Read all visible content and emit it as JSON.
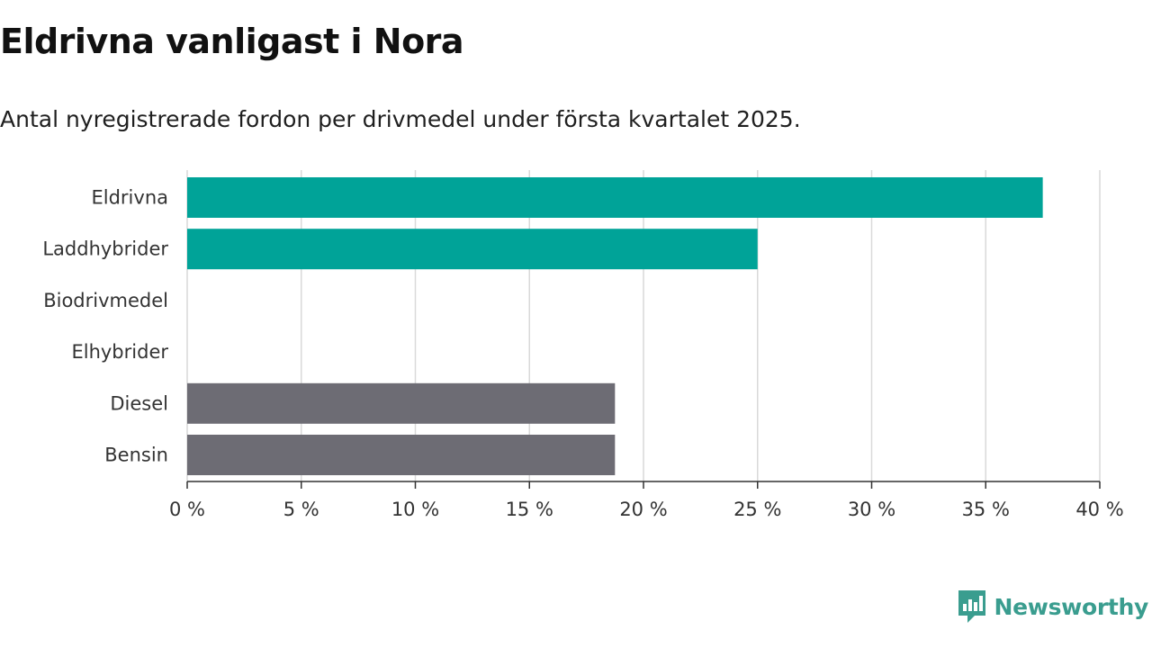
{
  "header": {
    "title": "Eldrivna vanligast i Nora",
    "subtitle": "Antal nyregistrerade fordon per drivmedel under första kvartalet 2025."
  },
  "brand": {
    "name": "Newsworthy",
    "color": "#3a9d8f"
  },
  "colors": {
    "electric": "#00a398",
    "fossil": "#6d6c74",
    "grid": "#d9d9d9",
    "axis": "#333333"
  },
  "chart_data": {
    "type": "bar",
    "orientation": "horizontal",
    "categories": [
      "Eldrivna",
      "Laddhybrider",
      "Biodrivmedel",
      "Elhybrider",
      "Diesel",
      "Bensin"
    ],
    "values": [
      37.5,
      25.0,
      0,
      0,
      18.75,
      18.75
    ],
    "bar_colors": [
      "#00a398",
      "#00a398",
      "#00a398",
      "#00a398",
      "#6d6c74",
      "#6d6c74"
    ],
    "xlim": [
      0,
      40
    ],
    "xticks": [
      0,
      5,
      10,
      15,
      20,
      25,
      30,
      35,
      40
    ],
    "xtick_labels": [
      "0 %",
      "5 %",
      "10 %",
      "15 %",
      "20 %",
      "25 %",
      "30 %",
      "35 %",
      "40 %"
    ],
    "title": "Eldrivna vanligast i Nora",
    "subtitle": "Antal nyregistrerade fordon per drivmedel under första kvartalet 2025.",
    "xlabel": "",
    "ylabel": "",
    "grid": true,
    "legend": "none"
  }
}
